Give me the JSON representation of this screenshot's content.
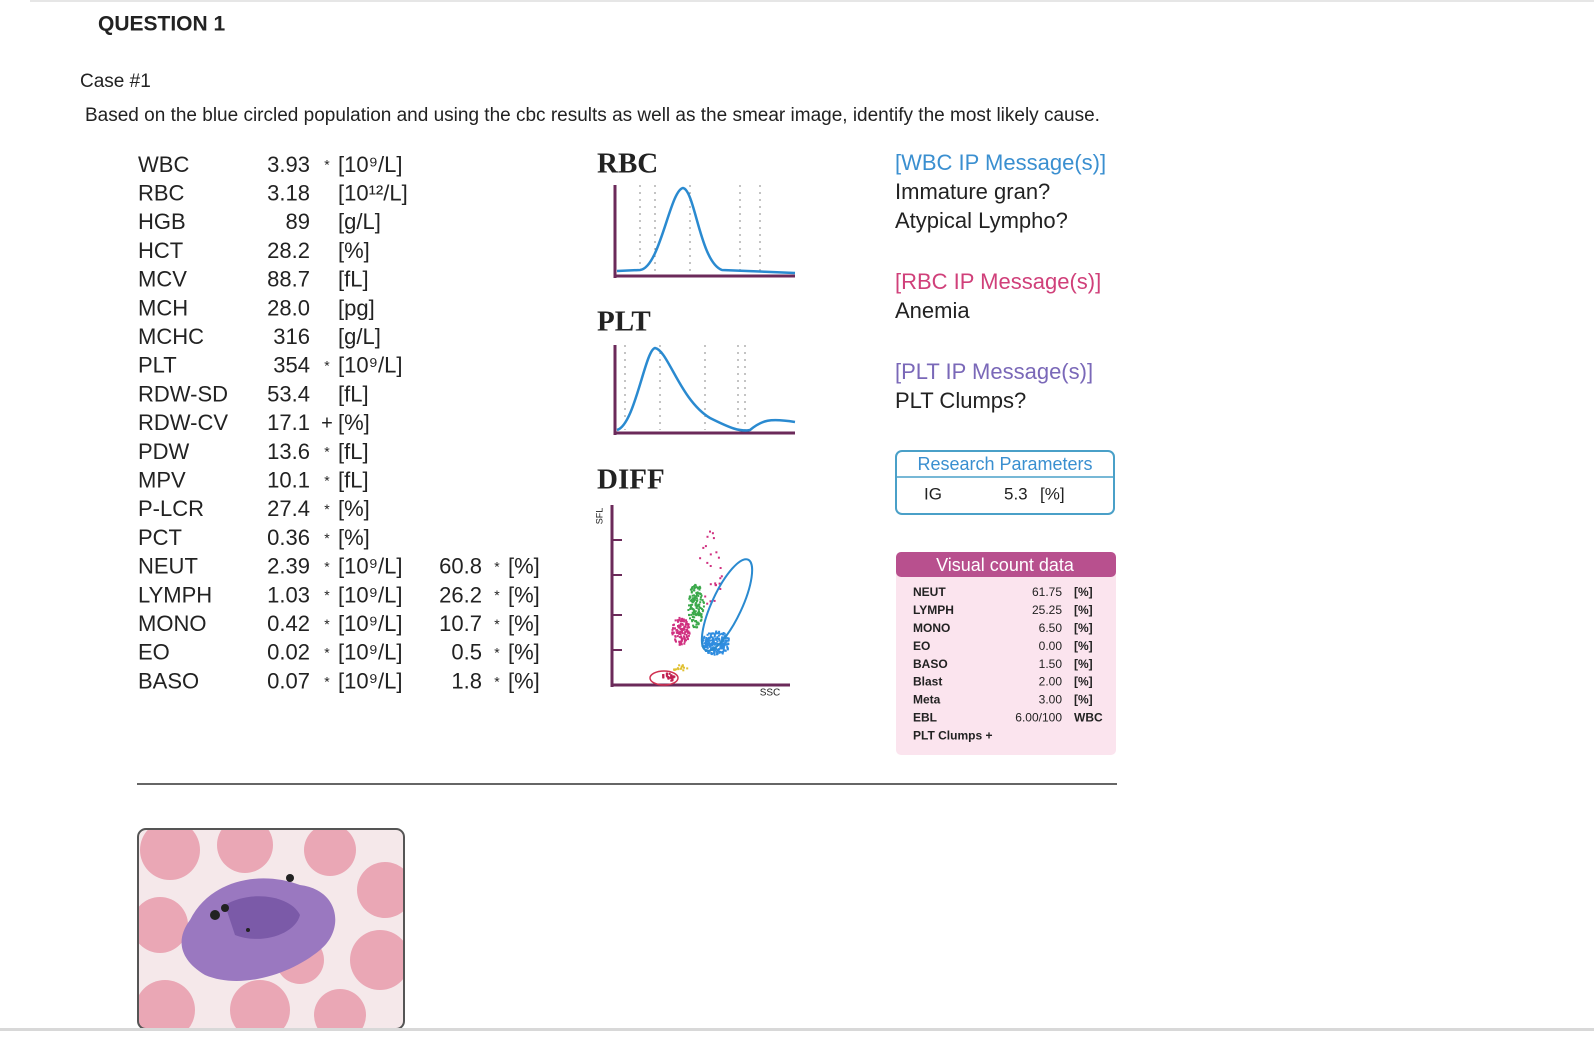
{
  "header": {
    "title": "QUESTION 1"
  },
  "case": "Case #1",
  "prompt": "Based on the blue circled population and using the cbc results as well as the smear image, identify the most likely cause.",
  "cbc": {
    "rows": [
      {
        "name": "WBC",
        "value": "3.93",
        "flag": "*",
        "unit": "[10⁹/L]"
      },
      {
        "name": "RBC",
        "value": "3.18",
        "unit": "[10¹²/L]"
      },
      {
        "name": "HGB",
        "value": "89",
        "unit": "[g/L]"
      },
      {
        "name": "HCT",
        "value": "28.2",
        "unit": "[%]"
      },
      {
        "name": "MCV",
        "value": "88.7",
        "unit": "[fL]"
      },
      {
        "name": "MCH",
        "value": "28.0",
        "unit": "[pg]"
      },
      {
        "name": "MCHC",
        "value": "316",
        "unit": "[g/L]"
      },
      {
        "name": "PLT",
        "value": "354",
        "flag": "*",
        "unit": "[10⁹/L]"
      },
      {
        "name": "RDW-SD",
        "value": "53.4",
        "unit": "[fL]"
      },
      {
        "name": "RDW-CV",
        "value": "17.1",
        "flag": "+",
        "unit": "[%]"
      },
      {
        "name": "PDW",
        "value": "13.6",
        "flag": "*",
        "unit": "[fL]"
      },
      {
        "name": "MPV",
        "value": "10.1",
        "flag": "*",
        "unit": "[fL]"
      },
      {
        "name": "P-LCR",
        "value": "27.4",
        "flag": "*",
        "unit": "[%]"
      },
      {
        "name": "PCT",
        "value": "0.36",
        "flag": "*",
        "unit": "[%]"
      },
      {
        "name": "NEUT",
        "value": "2.39",
        "flag": "*",
        "unit": "[10⁹/L]",
        "pct": {
          "value": "60.8",
          "flag": "*",
          "unit": "[%]"
        }
      },
      {
        "name": "LYMPH",
        "value": "1.03",
        "flag": "*",
        "unit": "[10⁹/L]",
        "pct": {
          "value": "26.2",
          "flag": "*",
          "unit": "[%]"
        }
      },
      {
        "name": "MONO",
        "value": "0.42",
        "flag": "*",
        "unit": "[10⁹/L]",
        "pct": {
          "value": "10.7",
          "flag": "*",
          "unit": "[%]"
        }
      },
      {
        "name": "EO",
        "value": "0.02",
        "flag": "*",
        "unit": "[10⁹/L]",
        "pct": {
          "value": "0.5",
          "flag": "*",
          "unit": "[%]"
        }
      },
      {
        "name": "BASO",
        "value": "0.07",
        "flag": "*",
        "unit": "[10⁹/L]",
        "pct": {
          "value": "1.8",
          "flag": "*",
          "unit": "[%]"
        }
      }
    ]
  },
  "histograms": {
    "rbc": "RBC",
    "plt": "PLT",
    "diff": {
      "label": "DIFF",
      "x_axis": "SSC",
      "y_axis": "SFL"
    }
  },
  "messages": [
    {
      "header": "[WBC IP Message(s)]",
      "color": "#3a8fd0",
      "lines": [
        "Immature gran?",
        "Atypical Lympho?"
      ]
    },
    {
      "header": "[RBC IP Message(s)]",
      "color": "#d0407a",
      "lines": [
        "Anemia"
      ]
    },
    {
      "header": "[PLT IP Message(s)]",
      "color": "#7a68b8",
      "lines": [
        "PLT Clumps?"
      ]
    }
  ],
  "research": {
    "title": "Research Parameters",
    "rows": [
      {
        "name": "IG",
        "value": "5.3",
        "unit": "[%]"
      }
    ]
  },
  "visual_count": {
    "title": "Visual count data",
    "rows": [
      {
        "name": "NEUT",
        "value": "61.75",
        "unit": "[%]"
      },
      {
        "name": "LYMPH",
        "value": "25.25",
        "unit": "[%]"
      },
      {
        "name": "MONO",
        "value": "6.50",
        "unit": "[%]"
      },
      {
        "name": "EO",
        "value": "0.00",
        "unit": "[%]"
      },
      {
        "name": "BASO",
        "value": "1.50",
        "unit": "[%]"
      },
      {
        "name": "Blast",
        "value": "2.00",
        "unit": "[%]"
      },
      {
        "name": "Meta",
        "value": "3.00",
        "unit": "[%]"
      },
      {
        "name": "EBL",
        "value": "6.00/100",
        "unit": "WBC"
      },
      {
        "name": "PLT Clumps +"
      }
    ]
  }
}
